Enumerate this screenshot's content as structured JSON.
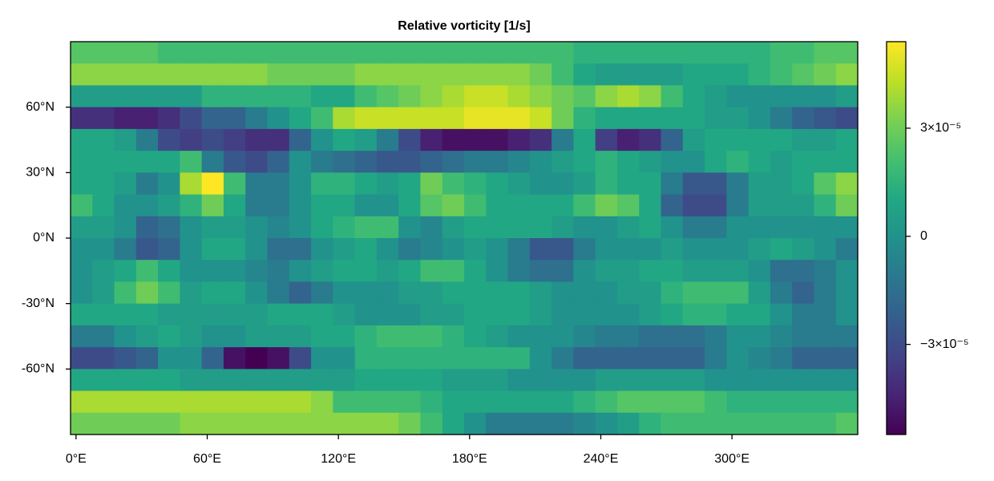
{
  "chart_data": {
    "type": "heatmap",
    "title": "Relative vorticity [1/s]",
    "colormap": "viridis",
    "clim": [
      -5.5e-05,
      5.4e-05
    ],
    "colorbar_ticks": [
      {
        "value": 3e-05,
        "label": "3×10⁻⁵"
      },
      0,
      {
        "value": -3e-05,
        "label": "−3×10⁻⁵"
      }
    ],
    "xlim": [
      -2.5,
      357.5
    ],
    "ylim": [
      -90,
      90
    ],
    "xticks": [
      {
        "value": 0,
        "label": "0°E"
      },
      {
        "value": 60,
        "label": "60°E"
      },
      {
        "value": 120,
        "label": "120°E"
      },
      {
        "value": 180,
        "label": "180°E"
      },
      {
        "value": 240,
        "label": "240°E"
      },
      {
        "value": 300,
        "label": "300°E"
      }
    ],
    "yticks": [
      {
        "value": 60,
        "label": "60°N"
      },
      {
        "value": 30,
        "label": "30°N"
      },
      {
        "value": 0,
        "label": "0°N"
      },
      {
        "value": -30,
        "label": "-30°N"
      },
      {
        "value": -60,
        "label": "-60°N"
      }
    ],
    "x": [
      2.5,
      12.5,
      22.5,
      32.5,
      42.5,
      52.5,
      62.5,
      72.5,
      82.5,
      92.5,
      102.5,
      112.5,
      122.5,
      132.5,
      142.5,
      152.5,
      162.5,
      172.5,
      182.5,
      192.5,
      202.5,
      212.5,
      222.5,
      232.5,
      242.5,
      252.5,
      262.5,
      272.5,
      282.5,
      292.5,
      302.5,
      312.5,
      322.5,
      332.5,
      342.5,
      352.5
    ],
    "y": [
      85,
      75,
      65,
      55,
      45,
      35,
      25,
      15,
      5,
      -5,
      -15,
      -25,
      -35,
      -45,
      -55,
      -65,
      -75,
      -85
    ],
    "z": [
      [
        2.5e-05,
        2.5e-05,
        2.5e-05,
        2.5e-05,
        2e-05,
        2e-05,
        2e-05,
        2e-05,
        2e-05,
        2e-05,
        2e-05,
        2e-05,
        2e-05,
        2e-05,
        2e-05,
        2e-05,
        2e-05,
        2e-05,
        2e-05,
        2e-05,
        2e-05,
        2e-05,
        2e-05,
        1.5e-05,
        1.5e-05,
        1.5e-05,
        1.5e-05,
        1.5e-05,
        1.5e-05,
        1.5e-05,
        1.5e-05,
        1.5e-05,
        2e-05,
        2e-05,
        2.5e-05,
        2.5e-05
      ],
      [
        3.5e-05,
        3.5e-05,
        3.5e-05,
        3.5e-05,
        3.5e-05,
        3.5e-05,
        3.5e-05,
        3.5e-05,
        3.5e-05,
        3e-05,
        3e-05,
        3e-05,
        3e-05,
        3.5e-05,
        3.5e-05,
        3.5e-05,
        3.5e-05,
        3.5e-05,
        3.5e-05,
        3.5e-05,
        3.5e-05,
        3e-05,
        2e-05,
        1e-05,
        5e-06,
        5e-06,
        5e-06,
        5e-06,
        1e-05,
        1e-05,
        1e-05,
        1.5e-05,
        2e-05,
        2.5e-05,
        3e-05,
        3.5e-05
      ],
      [
        5e-06,
        5e-06,
        5e-06,
        5e-06,
        5e-06,
        5e-06,
        1.5e-05,
        1.5e-05,
        1.5e-05,
        1.5e-05,
        1.5e-05,
        1e-05,
        1e-05,
        2e-05,
        2.5e-05,
        3e-05,
        3.5e-05,
        4e-05,
        4.5e-05,
        4.5e-05,
        4e-05,
        3.5e-05,
        3e-05,
        2.5e-05,
        3.5e-05,
        4e-05,
        3.5e-05,
        2e-05,
        1e-05,
        5e-06,
        0,
        0,
        0,
        0,
        0,
        5e-06
      ],
      [
        -4e-05,
        -4e-05,
        -4.5e-05,
        -4.5e-05,
        -4e-05,
        -3e-05,
        -2e-05,
        -2e-05,
        -1e-05,
        0,
        1e-05,
        2e-05,
        4e-05,
        4.5e-05,
        4.5e-05,
        4.5e-05,
        4.5e-05,
        4.5e-05,
        5e-05,
        5e-05,
        5e-05,
        4.5e-05,
        3e-05,
        1.5e-05,
        1e-05,
        1e-05,
        1e-05,
        1e-05,
        1e-05,
        5e-06,
        5e-06,
        0,
        -1e-05,
        -2e-05,
        -2.5e-05,
        -3e-05
      ],
      [
        1e-05,
        1e-05,
        5e-06,
        -1e-05,
        -3e-05,
        -3.5e-05,
        -3e-05,
        -3.5e-05,
        -4e-05,
        -4e-05,
        -2e-05,
        0,
        1e-05,
        5e-06,
        -1e-05,
        -3e-05,
        -4.5e-05,
        -5e-05,
        -5e-05,
        -5e-05,
        -4.5e-05,
        -4e-05,
        -1e-05,
        1e-05,
        -3.5e-05,
        -4.5e-05,
        -4e-05,
        -2e-05,
        5e-06,
        1e-05,
        1e-05,
        1e-05,
        1e-05,
        5e-06,
        5e-06,
        1e-05
      ],
      [
        1e-05,
        1e-05,
        1e-05,
        1e-05,
        1e-05,
        2e-05,
        -1e-05,
        -2.5e-05,
        -3e-05,
        -2e-05,
        0,
        -1e-05,
        -1.5e-05,
        -2e-05,
        -2.5e-05,
        -2.5e-05,
        -2e-05,
        -1.5e-05,
        -1e-05,
        -1e-05,
        -5e-06,
        0,
        5e-06,
        1e-05,
        1.5e-05,
        1e-05,
        5e-06,
        0,
        0,
        1e-05,
        1.5e-05,
        1e-05,
        5e-06,
        1e-05,
        1e-05,
        1e-05
      ],
      [
        1e-05,
        1e-05,
        5e-06,
        -1e-05,
        0,
        4e-05,
        5.4e-05,
        2e-05,
        -1e-05,
        -1e-05,
        0,
        1.5e-05,
        1.5e-05,
        1e-05,
        5e-06,
        1e-05,
        3e-05,
        2e-05,
        1.5e-05,
        1e-05,
        5e-06,
        0,
        0,
        5e-06,
        1.5e-05,
        1e-05,
        1e-05,
        -1e-05,
        -2.5e-05,
        -2.5e-05,
        -1e-05,
        5e-06,
        5e-06,
        1e-05,
        2.5e-05,
        3.5e-05
      ],
      [
        2e-05,
        1e-05,
        0,
        0,
        5e-06,
        1.5e-05,
        3e-05,
        1e-05,
        -1e-05,
        -1e-05,
        0,
        1e-05,
        1e-05,
        0,
        0,
        1e-05,
        2.5e-05,
        3e-05,
        2e-05,
        1e-05,
        1e-05,
        1e-05,
        1e-05,
        2e-05,
        3e-05,
        2.5e-05,
        1e-05,
        -2e-05,
        -3e-05,
        -3e-05,
        -1e-05,
        5e-06,
        5e-06,
        5e-06,
        1.5e-05,
        3e-05
      ],
      [
        5e-06,
        5e-06,
        0,
        -2e-05,
        -1.5e-05,
        0,
        5e-06,
        5e-06,
        0,
        -5e-06,
        0,
        1e-05,
        1.5e-05,
        2e-05,
        2e-05,
        0,
        -5e-06,
        5e-06,
        1e-05,
        1e-05,
        1e-05,
        1e-05,
        5e-06,
        0,
        0,
        5e-06,
        1e-05,
        0,
        -1e-05,
        -1e-05,
        0,
        0,
        0,
        0,
        0,
        0
      ],
      [
        0,
        0,
        -1e-05,
        -2.5e-05,
        -2e-05,
        0,
        1e-05,
        1e-05,
        0,
        -1.5e-05,
        -1.5e-05,
        0,
        5e-06,
        1e-05,
        0,
        -1e-05,
        -5e-06,
        0,
        5e-06,
        0,
        -1e-05,
        -2.5e-05,
        -2.5e-05,
        -1e-05,
        0,
        0,
        0,
        5e-06,
        0,
        0,
        0,
        5e-06,
        1e-05,
        5e-06,
        0,
        -1e-05
      ],
      [
        0,
        5e-06,
        1e-05,
        2e-05,
        1e-05,
        0,
        0,
        0,
        -5e-06,
        -1e-05,
        0,
        5e-06,
        1e-05,
        1e-05,
        5e-06,
        1e-05,
        2e-05,
        2e-05,
        1e-05,
        0,
        -1e-05,
        -1.5e-05,
        -1.5e-05,
        0,
        5e-06,
        5e-06,
        1e-05,
        1e-05,
        5e-06,
        5e-06,
        5e-06,
        0,
        -1.5e-05,
        -1.5e-05,
        -1e-05,
        0
      ],
      [
        0,
        5e-06,
        2e-05,
        3e-05,
        2e-05,
        5e-06,
        1e-05,
        1e-05,
        0,
        -1e-05,
        -2e-05,
        -1e-05,
        0,
        0,
        0,
        5e-06,
        5e-06,
        1e-05,
        1e-05,
        1e-05,
        1e-05,
        5e-06,
        0,
        0,
        0,
        5e-06,
        5e-06,
        1.5e-05,
        2e-05,
        2e-05,
        2e-05,
        5e-06,
        -1e-05,
        -2e-05,
        -1e-05,
        0
      ],
      [
        1e-05,
        1e-05,
        1e-05,
        1e-05,
        5e-06,
        5e-06,
        5e-06,
        5e-06,
        5e-06,
        1e-05,
        1e-05,
        1e-05,
        5e-06,
        0,
        0,
        0,
        5e-06,
        5e-06,
        1e-05,
        1e-05,
        1e-05,
        5e-06,
        0,
        0,
        0,
        0,
        5e-06,
        1e-05,
        1.5e-05,
        1.5e-05,
        1e-05,
        1e-05,
        0,
        -1e-05,
        -1e-05,
        0
      ],
      [
        -1e-05,
        -1e-05,
        0,
        5e-06,
        1e-05,
        5e-06,
        0,
        0,
        5e-06,
        5e-06,
        5e-06,
        1e-05,
        1e-05,
        1.5e-05,
        2e-05,
        2e-05,
        2e-05,
        1.5e-05,
        1e-05,
        5e-06,
        0,
        0,
        0,
        -5e-06,
        -1e-05,
        -1e-05,
        -1.5e-05,
        -1.5e-05,
        -1.5e-05,
        -1e-05,
        0,
        0,
        -5e-06,
        -1e-05,
        -1e-05,
        -1e-05
      ],
      [
        -3e-05,
        -3e-05,
        -2.5e-05,
        -2e-05,
        0,
        0,
        -2e-05,
        -5e-05,
        -5.5e-05,
        -5e-05,
        -3e-05,
        0,
        0,
        1.5e-05,
        1.5e-05,
        1.5e-05,
        1.5e-05,
        1.5e-05,
        1.5e-05,
        1.5e-05,
        1.5e-05,
        0,
        -1e-05,
        -2e-05,
        -2e-05,
        -2e-05,
        -2e-05,
        -2e-05,
        -2e-05,
        -1e-05,
        0,
        -5e-06,
        -1e-05,
        -2e-05,
        -2e-05,
        -2e-05
      ],
      [
        1e-05,
        1e-05,
        1e-05,
        1e-05,
        1e-05,
        5e-06,
        5e-06,
        5e-06,
        5e-06,
        5e-06,
        5e-06,
        5e-06,
        5e-06,
        1e-05,
        1e-05,
        1e-05,
        1e-05,
        5e-06,
        5e-06,
        5e-06,
        0,
        0,
        0,
        0,
        5e-06,
        5e-06,
        5e-06,
        5e-06,
        5e-06,
        0,
        0,
        0,
        0,
        0,
        0,
        0
      ],
      [
        4e-05,
        4e-05,
        4e-05,
        4e-05,
        4e-05,
        4e-05,
        4e-05,
        4e-05,
        4e-05,
        4e-05,
        4e-05,
        3.5e-05,
        2e-05,
        2e-05,
        2e-05,
        2e-05,
        1.5e-05,
        1e-05,
        1e-05,
        1e-05,
        1e-05,
        1e-05,
        1e-05,
        1.5e-05,
        2e-05,
        2.5e-05,
        2.5e-05,
        2.5e-05,
        2.5e-05,
        2e-05,
        1.5e-05,
        1.5e-05,
        1.5e-05,
        1.5e-05,
        1.5e-05,
        1.5e-05
      ],
      [
        3e-05,
        3e-05,
        3e-05,
        3e-05,
        3e-05,
        3.5e-05,
        3.5e-05,
        3.5e-05,
        3.5e-05,
        3.5e-05,
        3.5e-05,
        3.5e-05,
        3.5e-05,
        3.5e-05,
        3.5e-05,
        3e-05,
        2e-05,
        1e-05,
        0,
        -1e-05,
        -1e-05,
        -1e-05,
        -1e-05,
        -5e-06,
        0,
        5e-06,
        1.5e-05,
        2e-05,
        2e-05,
        2e-05,
        2e-05,
        2e-05,
        2e-05,
        2e-05,
        2e-05,
        2.5e-05
      ]
    ]
  }
}
